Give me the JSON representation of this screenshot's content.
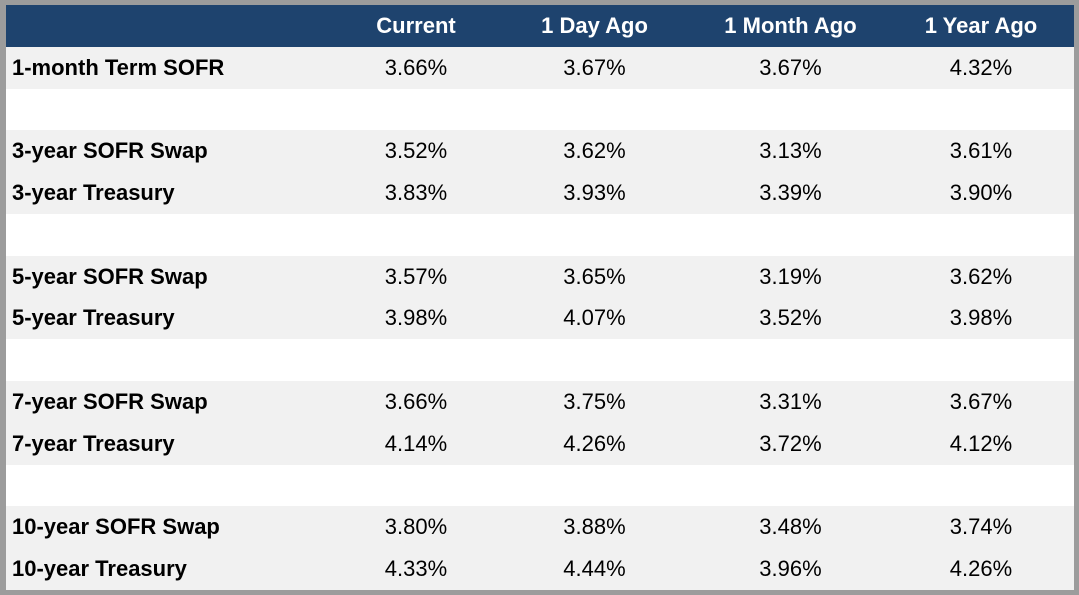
{
  "colors": {
    "header-bg": "#1E436E",
    "header-text": "#FFFFFF",
    "band-bg": "#F1F1F1",
    "spacer-bg": "#FFFFFF",
    "frame-border": "#9C9C9C",
    "text": "#000000"
  },
  "chart_data": {
    "type": "table",
    "columns": [
      "",
      "Current",
      "1 Day Ago",
      "1 Month Ago",
      "1 Year Ago"
    ],
    "rows": [
      {
        "label": "1-month Term SOFR",
        "values": [
          "3.66%",
          "3.67%",
          "3.67%",
          "4.32%"
        ]
      },
      {
        "label": "3-year SOFR Swap",
        "values": [
          "3.52%",
          "3.62%",
          "3.13%",
          "3.61%"
        ]
      },
      {
        "label": "3-year Treasury",
        "values": [
          "3.83%",
          "3.93%",
          "3.39%",
          "3.90%"
        ]
      },
      {
        "label": "5-year SOFR Swap",
        "values": [
          "3.57%",
          "3.65%",
          "3.19%",
          "3.62%"
        ]
      },
      {
        "label": "5-year Treasury",
        "values": [
          "3.98%",
          "4.07%",
          "3.52%",
          "3.98%"
        ]
      },
      {
        "label": "7-year SOFR Swap",
        "values": [
          "3.66%",
          "3.75%",
          "3.31%",
          "3.67%"
        ]
      },
      {
        "label": "7-year Treasury",
        "values": [
          "4.14%",
          "4.26%",
          "3.72%",
          "4.12%"
        ]
      },
      {
        "label": "10-year SOFR Swap",
        "values": [
          "3.80%",
          "3.88%",
          "3.48%",
          "3.74%"
        ]
      },
      {
        "label": "10-year Treasury",
        "values": [
          "4.33%",
          "4.44%",
          "3.96%",
          "4.26%"
        ]
      }
    ]
  }
}
